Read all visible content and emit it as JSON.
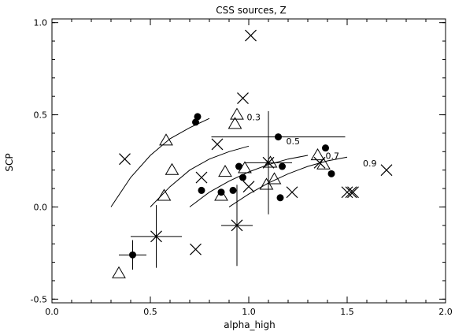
{
  "chart_data": {
    "type": "scatter",
    "title": "CSS sources, Z",
    "xlabel": "alpha_high",
    "ylabel": "SCP",
    "xlim": [
      0.0,
      2.0
    ],
    "ylim": [
      -0.52,
      1.02
    ],
    "xticks": [
      "0.0",
      "0.5",
      "1.0",
      "1.5",
      "2.0"
    ],
    "yticks": [
      "-0.5",
      "0.0",
      "0.5",
      "1.0"
    ],
    "grid": false,
    "series": [
      {
        "marker": "filled-circle",
        "points": [
          [
            0.73,
            0.46
          ],
          [
            0.74,
            0.49
          ],
          [
            0.76,
            0.09
          ],
          [
            0.86,
            0.08
          ],
          [
            0.92,
            0.09
          ],
          [
            0.95,
            0.22
          ],
          [
            0.97,
            0.16
          ],
          [
            1.15,
            0.38
          ],
          [
            1.16,
            0.05
          ],
          [
            1.17,
            0.22
          ],
          [
            1.39,
            0.32
          ],
          [
            1.42,
            0.18
          ],
          [
            0.41,
            -0.26
          ]
        ]
      },
      {
        "marker": "open-triangle",
        "points": [
          [
            0.34,
            -0.36
          ],
          [
            0.57,
            0.06
          ],
          [
            0.58,
            0.36
          ],
          [
            0.61,
            0.2
          ],
          [
            0.86,
            0.06
          ],
          [
            0.88,
            0.19
          ],
          [
            0.93,
            0.45
          ],
          [
            0.94,
            0.5
          ],
          [
            0.98,
            0.21
          ],
          [
            1.09,
            0.12
          ],
          [
            1.11,
            0.24
          ],
          [
            1.13,
            0.15
          ],
          [
            1.35,
            0.28
          ],
          [
            1.38,
            0.23
          ]
        ]
      },
      {
        "marker": "cross",
        "points": [
          [
            0.37,
            0.26
          ],
          [
            0.73,
            -0.23
          ],
          [
            0.76,
            0.16
          ],
          [
            0.84,
            0.34
          ],
          [
            0.97,
            0.59
          ],
          [
            1.01,
            0.93
          ],
          [
            1.0,
            0.11
          ],
          [
            1.22,
            0.08
          ],
          [
            1.36,
            0.24
          ],
          [
            1.5,
            0.08
          ],
          [
            1.52,
            0.08
          ],
          [
            1.53,
            0.08
          ],
          [
            1.7,
            0.2
          ]
        ]
      }
    ],
    "error_points": [
      {
        "x": 0.41,
        "y": -0.26,
        "xerr": 0.07,
        "yerr": 0.08,
        "marker": "filled-circle"
      },
      {
        "x": 0.53,
        "y": -0.16,
        "xerr": 0.13,
        "yerr": 0.17,
        "marker": "cross"
      },
      {
        "x": 0.94,
        "y": -0.1,
        "xerr": 0.08,
        "yerr": 0.22,
        "marker": "cross"
      },
      {
        "x": 1.1,
        "y": 0.24,
        "xerr": 0.12,
        "yerr": 0.28,
        "marker": "cross"
      },
      {
        "x": 1.15,
        "y": 0.38,
        "xerr": 0.34,
        "yerr": 0.0,
        "marker": "none"
      }
    ],
    "model_curves": [
      {
        "label": "0.3",
        "label_at": [
          0.99,
          0.47
        ],
        "points": [
          [
            0.3,
            0.0
          ],
          [
            0.4,
            0.16
          ],
          [
            0.5,
            0.28
          ],
          [
            0.6,
            0.37
          ],
          [
            0.7,
            0.43
          ],
          [
            0.8,
            0.48
          ]
        ]
      },
      {
        "label": "0.5",
        "label_at": [
          1.19,
          0.34
        ],
        "points": [
          [
            0.5,
            0.0
          ],
          [
            0.6,
            0.11
          ],
          [
            0.7,
            0.2
          ],
          [
            0.8,
            0.26
          ],
          [
            0.9,
            0.3
          ],
          [
            1.0,
            0.33
          ]
        ]
      },
      {
        "label": "0.7",
        "label_at": [
          1.39,
          0.26
        ],
        "points": [
          [
            0.7,
            0.0
          ],
          [
            0.8,
            0.08
          ],
          [
            0.9,
            0.14
          ],
          [
            1.0,
            0.19
          ],
          [
            1.1,
            0.23
          ],
          [
            1.2,
            0.26
          ],
          [
            1.3,
            0.28
          ]
        ]
      },
      {
        "label": "0.9",
        "label_at": [
          1.58,
          0.22
        ],
        "points": [
          [
            0.9,
            0.0
          ],
          [
            1.0,
            0.07
          ],
          [
            1.1,
            0.13
          ],
          [
            1.2,
            0.18
          ],
          [
            1.3,
            0.22
          ],
          [
            1.4,
            0.25
          ],
          [
            1.5,
            0.27
          ]
        ]
      }
    ]
  }
}
